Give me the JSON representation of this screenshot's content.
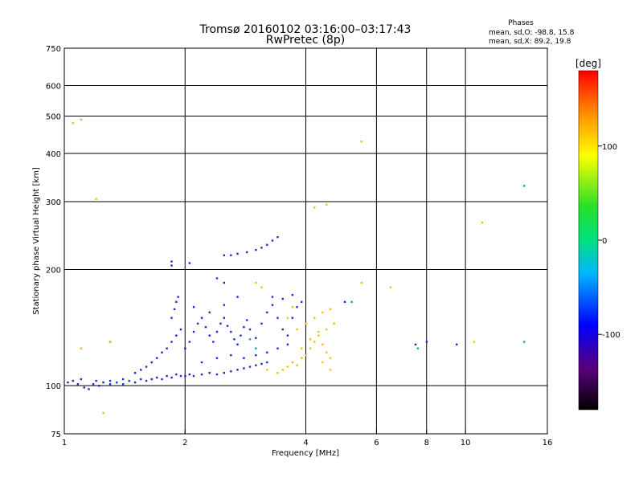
{
  "chart_data": {
    "type": "scatter",
    "title": "Tromsø 20160102 03:16:00–03:17:43",
    "subtitle": "RwPretec (8p)",
    "xlabel": "Frequency [MHz]",
    "ylabel": "Stationary phase Virtual Height [km]",
    "x_scale": "log",
    "y_scale": "log",
    "xlim": [
      1,
      16
    ],
    "ylim": [
      75,
      750
    ],
    "x_ticks": [
      1,
      2,
      4,
      6,
      8,
      10,
      16
    ],
    "y_ticks": [
      75,
      100,
      200,
      300,
      400,
      500,
      600,
      750
    ],
    "grid_x": [
      2,
      4,
      6,
      8,
      10
    ],
    "grid_y": [
      100,
      200,
      300,
      400,
      500,
      600
    ],
    "legend_title": "Phases",
    "legend_lines": [
      "mean, sd,O: -98.8, 15.8",
      "mean, sd,X:  89.2, 19.8"
    ],
    "colorbar": {
      "label": "[deg]",
      "range": [
        -180,
        180
      ],
      "ticks": [
        100,
        0,
        -100
      ]
    },
    "points_o_mode": [
      [
        1.02,
        102
      ],
      [
        1.05,
        103
      ],
      [
        1.08,
        101
      ],
      [
        1.12,
        99
      ],
      [
        1.15,
        98
      ],
      [
        1.18,
        101
      ],
      [
        1.22,
        100
      ],
      [
        1.25,
        102
      ],
      [
        1.3,
        101
      ],
      [
        1.35,
        102
      ],
      [
        1.4,
        101
      ],
      [
        1.45,
        103
      ],
      [
        1.5,
        102
      ],
      [
        1.55,
        104
      ],
      [
        1.6,
        103
      ],
      [
        1.65,
        104
      ],
      [
        1.7,
        105
      ],
      [
        1.75,
        104
      ],
      [
        1.8,
        106
      ],
      [
        1.85,
        105
      ],
      [
        1.9,
        107
      ],
      [
        1.95,
        106
      ],
      [
        2.0,
        106
      ],
      [
        2.05,
        107
      ],
      [
        2.1,
        106
      ],
      [
        2.2,
        107
      ],
      [
        2.3,
        108
      ],
      [
        2.4,
        107
      ],
      [
        2.5,
        108
      ],
      [
        2.6,
        109
      ],
      [
        2.7,
        110
      ],
      [
        2.8,
        111
      ],
      [
        2.9,
        112
      ],
      [
        3.0,
        113
      ],
      [
        3.1,
        114
      ],
      [
        3.2,
        115
      ],
      [
        1.1,
        104
      ],
      [
        1.2,
        103
      ],
      [
        1.3,
        103
      ],
      [
        1.4,
        104
      ],
      [
        1.5,
        108
      ],
      [
        1.55,
        110
      ],
      [
        1.6,
        112
      ],
      [
        1.65,
        115
      ],
      [
        1.7,
        118
      ],
      [
        1.75,
        122
      ],
      [
        1.8,
        125
      ],
      [
        1.85,
        130
      ],
      [
        1.9,
        135
      ],
      [
        1.95,
        140
      ],
      [
        1.85,
        150
      ],
      [
        1.88,
        158
      ],
      [
        1.9,
        165
      ],
      [
        1.92,
        170
      ],
      [
        2.0,
        125
      ],
      [
        2.05,
        130
      ],
      [
        2.1,
        138
      ],
      [
        2.15,
        145
      ],
      [
        2.2,
        150
      ],
      [
        2.25,
        142
      ],
      [
        2.3,
        135
      ],
      [
        2.35,
        130
      ],
      [
        2.4,
        138
      ],
      [
        2.45,
        145
      ],
      [
        2.5,
        150
      ],
      [
        2.55,
        143
      ],
      [
        2.6,
        138
      ],
      [
        2.65,
        132
      ],
      [
        2.7,
        128
      ],
      [
        2.75,
        135
      ],
      [
        2.8,
        142
      ],
      [
        2.85,
        148
      ],
      [
        2.9,
        140
      ],
      [
        3.0,
        133
      ],
      [
        3.1,
        145
      ],
      [
        3.2,
        155
      ],
      [
        3.3,
        162
      ],
      [
        3.4,
        150
      ],
      [
        3.5,
        140
      ],
      [
        3.6,
        135
      ],
      [
        3.7,
        150
      ],
      [
        3.8,
        160
      ],
      [
        3.9,
        165
      ],
      [
        2.5,
        218
      ],
      [
        2.6,
        218
      ],
      [
        2.7,
        220
      ],
      [
        2.85,
        222
      ],
      [
        3.0,
        225
      ],
      [
        3.1,
        228
      ],
      [
        3.2,
        232
      ],
      [
        3.3,
        238
      ],
      [
        3.4,
        243
      ],
      [
        1.85,
        210
      ],
      [
        1.85,
        205
      ],
      [
        2.05,
        208
      ],
      [
        2.4,
        190
      ],
      [
        2.5,
        185
      ],
      [
        1.3,
        130
      ],
      [
        2.2,
        115
      ],
      [
        2.4,
        118
      ],
      [
        2.6,
        120
      ],
      [
        2.8,
        118
      ],
      [
        3.0,
        120
      ],
      [
        3.2,
        122
      ],
      [
        3.4,
        125
      ],
      [
        3.6,
        128
      ],
      [
        2.1,
        160
      ],
      [
        2.3,
        155
      ],
      [
        2.5,
        162
      ],
      [
        2.7,
        170
      ],
      [
        3.3,
        170
      ],
      [
        3.5,
        168
      ],
      [
        3.7,
        172
      ],
      [
        7.5,
        128
      ],
      [
        8.0,
        130
      ],
      [
        9.5,
        128
      ],
      [
        5.0,
        165
      ]
    ],
    "points_x_mode": [
      [
        1.05,
        480
      ],
      [
        1.1,
        490
      ],
      [
        1.2,
        305
      ],
      [
        1.25,
        85
      ],
      [
        1.3,
        130
      ],
      [
        1.1,
        125
      ],
      [
        3.5,
        110
      ],
      [
        3.6,
        112
      ],
      [
        3.7,
        115
      ],
      [
        3.8,
        113
      ],
      [
        3.9,
        118
      ],
      [
        4.0,
        120
      ],
      [
        4.1,
        125
      ],
      [
        4.2,
        130
      ],
      [
        4.3,
        135
      ],
      [
        4.4,
        128
      ],
      [
        4.5,
        122
      ],
      [
        4.6,
        118
      ],
      [
        3.8,
        140
      ],
      [
        4.0,
        145
      ],
      [
        4.2,
        150
      ],
      [
        4.4,
        155
      ],
      [
        4.6,
        158
      ],
      [
        3.9,
        125
      ],
      [
        4.1,
        132
      ],
      [
        4.3,
        138
      ],
      [
        4.5,
        140
      ],
      [
        4.7,
        145
      ],
      [
        3.6,
        150
      ],
      [
        3.7,
        160
      ],
      [
        4.4,
        115
      ],
      [
        4.6,
        110
      ],
      [
        3.4,
        108
      ],
      [
        3.2,
        110
      ],
      [
        5.5,
        430
      ],
      [
        4.5,
        295
      ],
      [
        6.5,
        180
      ],
      [
        5.5,
        185
      ],
      [
        11.0,
        265
      ],
      [
        10.5,
        130
      ],
      [
        3.0,
        185
      ],
      [
        3.1,
        180
      ],
      [
        4.2,
        290
      ]
    ],
    "points_teal": [
      [
        14.0,
        330
      ],
      [
        14.0,
        130
      ],
      [
        7.6,
        125
      ],
      [
        5.2,
        165
      ],
      [
        2.9,
        132
      ],
      [
        3.0,
        125
      ]
    ],
    "colors": {
      "o_mode": "#1a2bd8",
      "x_mode": "#f2c000",
      "teal": "#0aa6b0"
    }
  }
}
